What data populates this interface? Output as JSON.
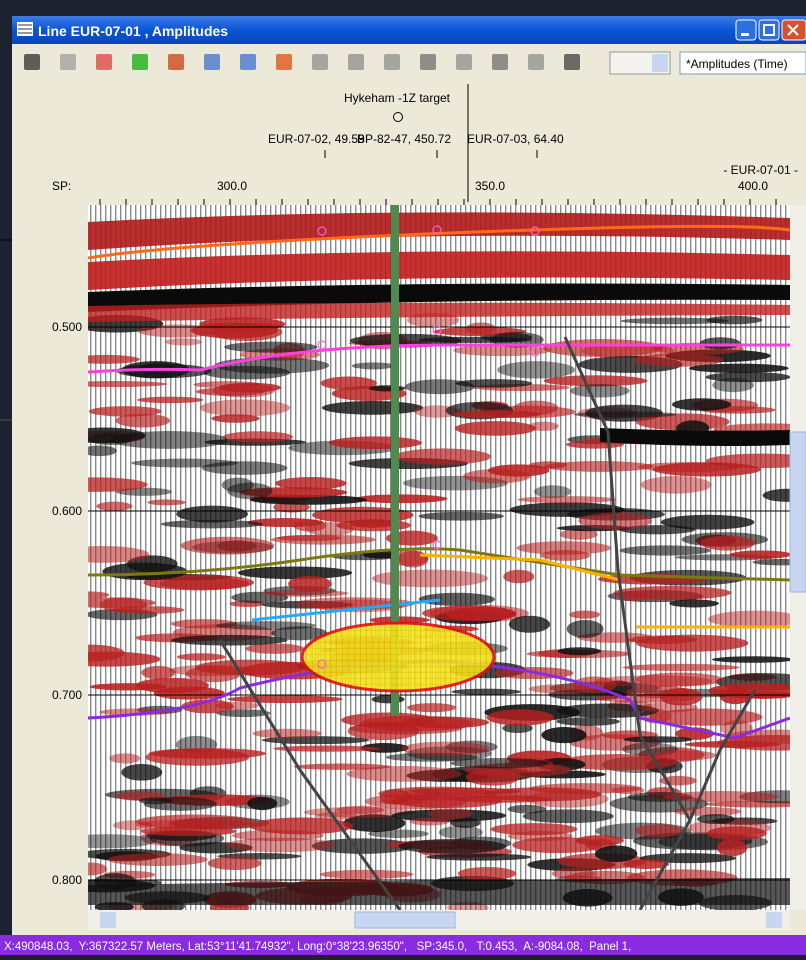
{
  "window": {
    "title": "Line EUR-07-01 , Amplitudes"
  },
  "toolbar": {
    "display_select": "*Amplitudes (Time)"
  },
  "header": {
    "well": "Hykeham -1Z target",
    "ties": [
      "EUR-07-02, 49.59",
      "BP-82-47, 450.72",
      "EUR-07-03, 64.40"
    ],
    "line_label": "- EUR-07-01 -",
    "sp_label": "SP:",
    "sp_ticks": [
      "300.0",
      "350.0",
      "400.0"
    ]
  },
  "time_axis": {
    "ticks": [
      "0.500",
      "0.600",
      "0.700",
      "0.800"
    ]
  },
  "status_bar": {
    "text": "X:490848.03,  Y:367322.57 Meters, Lat:53°11'41.74932\", Long:0°38'23.96350\",   SP:345.0,   T:0.453,  A:-9084.08,  Panel 1,"
  }
}
